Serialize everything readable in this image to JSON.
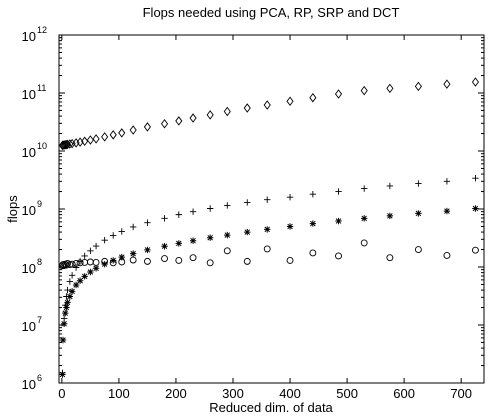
{
  "chart_data": {
    "type": "scatter",
    "title": "Flops needed using PCA, RP, SRP and DCT",
    "xlabel": "Reduced dim. of data",
    "ylabel": "flops",
    "xlim": [
      -5,
      740
    ],
    "ylim": [
      1000000,
      1000000000000
    ],
    "yscale": "log",
    "grid": false,
    "legend": "none",
    "x_ticks": [
      0,
      100,
      200,
      300,
      400,
      500,
      600,
      700
    ],
    "x_tick_labels": [
      "0",
      "100",
      "200",
      "300",
      "400",
      "500",
      "600",
      "700"
    ],
    "y_ticks": [
      1000000,
      10000000,
      100000000,
      1000000000,
      10000000000,
      100000000000,
      1000000000000
    ],
    "y_tick_labels": [
      {
        "base": "10",
        "exp": "6"
      },
      {
        "base": "10",
        "exp": "7"
      },
      {
        "base": "10",
        "exp": "8"
      },
      {
        "base": "10",
        "exp": "9"
      },
      {
        "base": "10",
        "exp": "10"
      },
      {
        "base": "10",
        "exp": "11"
      },
      {
        "base": "10",
        "exp": "12"
      }
    ],
    "series": [
      {
        "marker": "diamond",
        "points": [
          [
            1,
            12500000000.0
          ],
          [
            2,
            12600000000.0
          ],
          [
            4,
            12700000000.0
          ],
          [
            6,
            12800000000.0
          ],
          [
            8,
            12900000000.0
          ],
          [
            10,
            13000000000.0
          ],
          [
            14,
            13200000000.0
          ],
          [
            18,
            13400000000.0
          ],
          [
            25,
            13800000000.0
          ],
          [
            32,
            14200000000.0
          ],
          [
            40,
            14700000000.0
          ],
          [
            50,
            15500000000.0
          ],
          [
            60,
            16200000000.0
          ],
          [
            75,
            17500000000.0
          ],
          [
            90,
            19000000000.0
          ],
          [
            105,
            20500000000.0
          ],
          [
            125,
            23000000000.0
          ],
          [
            150,
            26000000000.0
          ],
          [
            180,
            29500000000.0
          ],
          [
            205,
            33000000000.0
          ],
          [
            230,
            37000000000.0
          ],
          [
            260,
            42000000000.0
          ],
          [
            290,
            48000000000.0
          ],
          [
            325,
            55000000000.0
          ],
          [
            360,
            62000000000.0
          ],
          [
            400,
            72000000000.0
          ],
          [
            440,
            83000000000.0
          ],
          [
            485,
            96000000000.0
          ],
          [
            530,
            110000000000.0
          ],
          [
            575,
            120000000000.0
          ],
          [
            625,
            130000000000.0
          ],
          [
            675,
            142000000000.0
          ],
          [
            725,
            155000000000.0
          ]
        ]
      },
      {
        "marker": "plus",
        "points": [
          [
            1,
            1500000.0
          ],
          [
            2,
            5500000.0
          ],
          [
            4,
            13000000.0
          ],
          [
            6,
            22000000.0
          ],
          [
            8,
            31000000.0
          ],
          [
            10,
            40000000.0
          ],
          [
            14,
            56000000.0
          ],
          [
            18,
            72000000.0
          ],
          [
            25,
            98000000.0
          ],
          [
            32,
            125000000.0
          ],
          [
            40,
            155000000.0
          ],
          [
            50,
            190000000.0
          ],
          [
            60,
            230000000.0
          ],
          [
            75,
            290000000.0
          ],
          [
            90,
            350000000.0
          ],
          [
            105,
            410000000.0
          ],
          [
            125,
            490000000.0
          ],
          [
            150,
            580000000.0
          ],
          [
            180,
            690000000.0
          ],
          [
            205,
            800000000.0
          ],
          [
            230,
            900000000.0
          ],
          [
            260,
            1020000000.0
          ],
          [
            290,
            1150000000.0
          ],
          [
            325,
            1300000000.0
          ],
          [
            360,
            1450000000.0
          ],
          [
            400,
            1600000000.0
          ],
          [
            440,
            1800000000.0
          ],
          [
            485,
            2000000000.0
          ],
          [
            530,
            2250000000.0
          ],
          [
            575,
            2500000000.0
          ],
          [
            625,
            2750000000.0
          ],
          [
            675,
            3000000000.0
          ],
          [
            725,
            3400000000.0
          ]
        ]
      },
      {
        "marker": "asterisk",
        "points": [
          [
            1,
            1400000.0
          ],
          [
            2,
            5500000.0
          ],
          [
            4,
            10500000.0
          ],
          [
            6,
            16000000.0
          ],
          [
            8,
            20000000.0
          ],
          [
            10,
            24500000.0
          ],
          [
            14,
            31000000.0
          ],
          [
            18,
            38000000.0
          ],
          [
            25,
            49000000.0
          ],
          [
            32,
            58000000.0
          ],
          [
            40,
            69000000.0
          ],
          [
            50,
            82000000.0
          ],
          [
            60,
            95000000.0
          ],
          [
            75,
            112000000.0
          ],
          [
            90,
            130000000.0
          ],
          [
            105,
            148000000.0
          ],
          [
            125,
            170000000.0
          ],
          [
            150,
            197000000.0
          ],
          [
            180,
            228000000.0
          ],
          [
            205,
            255000000.0
          ],
          [
            230,
            284000000.0
          ],
          [
            260,
            320000000.0
          ],
          [
            290,
            355000000.0
          ],
          [
            325,
            400000000.0
          ],
          [
            360,
            445000000.0
          ],
          [
            400,
            500000000.0
          ],
          [
            440,
            560000000.0
          ],
          [
            485,
            620000000.0
          ],
          [
            530,
            690000000.0
          ],
          [
            575,
            760000000.0
          ],
          [
            625,
            840000000.0
          ],
          [
            675,
            920000000.0
          ],
          [
            725,
            1020000000.0
          ]
        ]
      },
      {
        "marker": "circle",
        "points": [
          [
            1,
            105000000.0
          ],
          [
            2,
            110000000.0
          ],
          [
            4,
            106000000.0
          ],
          [
            6,
            112000000.0
          ],
          [
            8,
            108000000.0
          ],
          [
            10,
            115000000.0
          ],
          [
            14,
            110000000.0
          ],
          [
            18,
            112000000.0
          ],
          [
            25,
            115000000.0
          ],
          [
            32,
            118000000.0
          ],
          [
            40,
            120000000.0
          ],
          [
            50,
            122000000.0
          ],
          [
            60,
            120000000.0
          ],
          [
            75,
            125000000.0
          ],
          [
            90,
            118000000.0
          ],
          [
            105,
            122000000.0
          ],
          [
            125,
            132000000.0
          ],
          [
            150,
            125000000.0
          ],
          [
            180,
            140000000.0
          ],
          [
            205,
            130000000.0
          ],
          [
            230,
            145000000.0
          ],
          [
            260,
            118000000.0
          ],
          [
            290,
            190000000.0
          ],
          [
            325,
            125000000.0
          ],
          [
            360,
            205000000.0
          ],
          [
            400,
            130000000.0
          ],
          [
            440,
            175000000.0
          ],
          [
            485,
            155000000.0
          ],
          [
            530,
            260000000.0
          ],
          [
            575,
            145000000.0
          ],
          [
            625,
            200000000.0
          ],
          [
            675,
            158000000.0
          ],
          [
            725,
            195000000.0
          ]
        ]
      }
    ]
  }
}
